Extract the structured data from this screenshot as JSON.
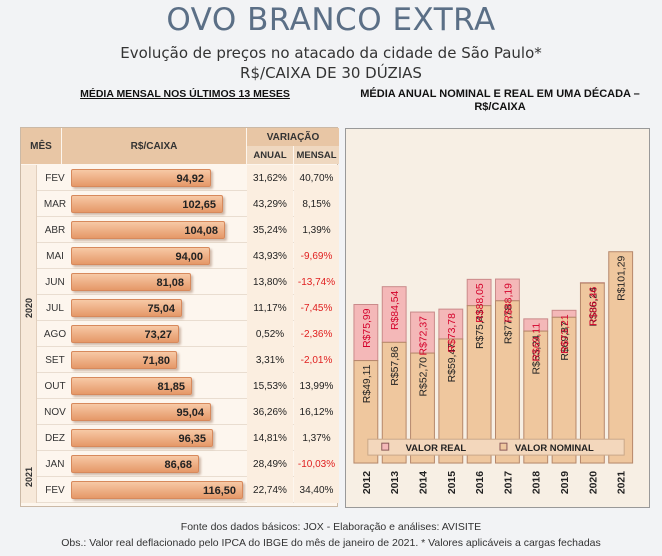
{
  "title": "OVO BRANCO EXTRA",
  "subtitle": "Evolução de preços no atacado da cidade de São Paulo*",
  "unit": "R$/CAIXA DE 30 DÚZIAS",
  "left_section_title": "MÉDIA MENSAL NOS ÚLTIMOS 13 MESES",
  "right_section_title": "MÉDIA ANUAL NOMINAL E REAL EM UMA DÉCADA – R$/CAIXA",
  "footer_source": "Fonte dos dados básicos: JOX - Elaboração e análises: AVISITE",
  "footer_obs": "Obs.: Valor real deflacionado pelo  IPCA do IBGE do mês de janeiro de 2021.  * Valores aplicáveis a cargas  fechadas",
  "colors": {
    "real": "#f4b8b8",
    "nominal": "#efc79e",
    "negative": "#e02020",
    "real_label": "#d4002a"
  },
  "chart_data": [
    {
      "type": "table",
      "columns": [
        "MÊS",
        "R$/CAIXA",
        "VARIAÇÃO ANUAL",
        "VARIAÇÃO MENSAL"
      ],
      "header_group": "VARIAÇÃO",
      "sub_headers": [
        "ANUAL",
        "MENSAL"
      ],
      "years": [
        {
          "label": "2020",
          "rows": 11
        },
        {
          "label": "2021",
          "rows": 2
        }
      ],
      "max_value": 116.5,
      "rows": [
        {
          "month": "FEV",
          "value": 94.92,
          "value_label": "94,92",
          "annual": "31,62%",
          "monthly": "40,70%",
          "neg": false
        },
        {
          "month": "MAR",
          "value": 102.65,
          "value_label": "102,65",
          "annual": "43,29%",
          "monthly": "8,15%",
          "neg": false
        },
        {
          "month": "ABR",
          "value": 104.08,
          "value_label": "104,08",
          "annual": "35,24%",
          "monthly": "1,39%",
          "neg": false
        },
        {
          "month": "MAI",
          "value": 94.0,
          "value_label": "94,00",
          "annual": "43,93%",
          "monthly": "-9,69%",
          "neg": true
        },
        {
          "month": "JUN",
          "value": 81.08,
          "value_label": "81,08",
          "annual": "13,80%",
          "monthly": "-13,74%",
          "neg": true
        },
        {
          "month": "JUL",
          "value": 75.04,
          "value_label": "75,04",
          "annual": "11,17%",
          "monthly": "-7,45%",
          "neg": true
        },
        {
          "month": "AGO",
          "value": 73.27,
          "value_label": "73,27",
          "annual": "0,52%",
          "monthly": "-2,36%",
          "neg": true
        },
        {
          "month": "SET",
          "value": 71.8,
          "value_label": "71,80",
          "annual": "3,31%",
          "monthly": "-2,01%",
          "neg": true
        },
        {
          "month": "OUT",
          "value": 81.85,
          "value_label": "81,85",
          "annual": "15,53%",
          "monthly": "13,99%",
          "neg": false
        },
        {
          "month": "NOV",
          "value": 95.04,
          "value_label": "95,04",
          "annual": "36,26%",
          "monthly": "16,12%",
          "neg": false
        },
        {
          "month": "DEZ",
          "value": 96.35,
          "value_label": "96,35",
          "annual": "14,81%",
          "monthly": "1,37%",
          "neg": false
        },
        {
          "month": "JAN",
          "value": 86.68,
          "value_label": "86,68",
          "annual": "28,49%",
          "monthly": "-10,03%",
          "neg": true
        },
        {
          "month": "FEV",
          "value": 116.5,
          "value_label": "116,50",
          "annual": "22,74%",
          "monthly": "34,40%",
          "neg": false
        }
      ]
    },
    {
      "type": "bar",
      "categories": [
        "2012",
        "2013",
        "2014",
        "2015",
        "2016",
        "2017",
        "2018",
        "2019",
        "2020",
        "2021"
      ],
      "series": [
        {
          "name": "VALOR REAL",
          "values": [
            75.99,
            84.54,
            72.37,
            73.78,
            88.05,
            88.19,
            69.11,
            73.21,
            86.46,
            null
          ],
          "labels": [
            "R$75,99",
            "R$84,54",
            "R$72,37",
            "R$73,78",
            "R$88,05",
            "R$88,19",
            "R$69,11",
            "R$73,21",
            "R$86,46",
            ""
          ]
        },
        {
          "name": "VALOR NOMINAL",
          "values": [
            49.11,
            57.86,
            52.7,
            59.47,
            75.43,
            77.78,
            63.24,
            69.87,
            86.24,
            101.29
          ],
          "labels": [
            "R$49,11",
            "R$57,86",
            "R$52,70",
            "R$59,47",
            "R$75,43",
            "R$77,78",
            "R$63,24",
            "R$69,87",
            "R$86,24",
            "R$101,29"
          ]
        }
      ],
      "ylim": [
        0,
        105
      ],
      "legend_position": "bottom"
    }
  ]
}
